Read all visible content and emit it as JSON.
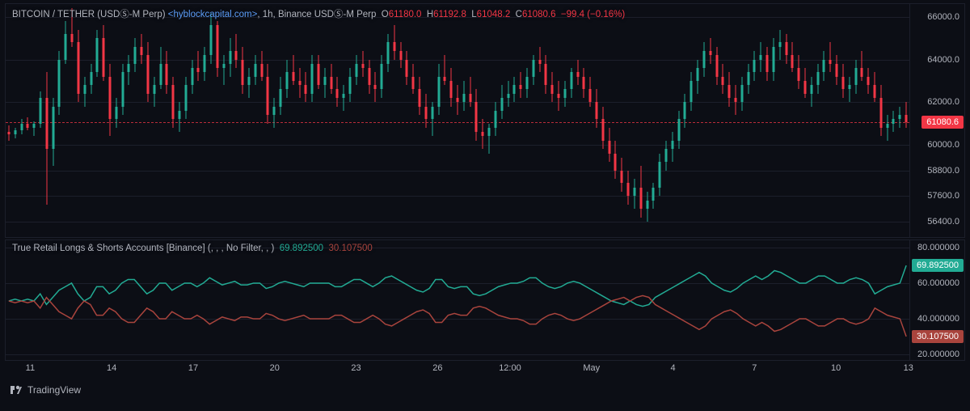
{
  "main": {
    "legend": {
      "pair": "BITCOIN / TETHER (USDⓈ-M Perp)",
      "source": "<hyblockcapital.com>",
      "interval": ", 1h,",
      "exchange": "Binance USDⓈ-M Perp",
      "o_label": "O",
      "o": "61180.0",
      "h_label": "H",
      "h": "61192.8",
      "l_label": "L",
      "l": "61048.2",
      "c_label": "C",
      "c": "61080.6",
      "chg": "−99.4 (−0.16%)"
    },
    "y": {
      "min": 55600,
      "max": 66600,
      "ticks": [
        66000,
        64000,
        62000,
        60000,
        58800,
        57600,
        56400
      ],
      "tick_labels": [
        "66000.0",
        "64000.0",
        "62000.0",
        "60000.0",
        "58800.0",
        "57600.0",
        "56400.0"
      ],
      "price_line": 61080.6,
      "price_label": "61080.6",
      "badge_bg": "#f23645"
    },
    "colors": {
      "up": "#22ab94",
      "down": "#f23645",
      "grid": "#1c1f2b",
      "bg": "#0c0e15"
    },
    "candles_ohlc": [
      [
        60600,
        60900,
        60200,
        60500
      ],
      [
        60500,
        60800,
        60300,
        60700
      ],
      [
        60700,
        61200,
        60500,
        61000
      ],
      [
        61000,
        61300,
        60700,
        60800
      ],
      [
        60800,
        61100,
        60400,
        61000
      ],
      [
        61000,
        62500,
        60800,
        62200
      ],
      [
        62200,
        63400,
        57200,
        59800
      ],
      [
        59800,
        62200,
        59000,
        61800
      ],
      [
        61800,
        64400,
        61400,
        64000
      ],
      [
        64000,
        65800,
        63800,
        65200
      ],
      [
        65200,
        66400,
        64600,
        64800
      ],
      [
        64800,
        65400,
        62000,
        62400
      ],
      [
        62400,
        63200,
        61800,
        62800
      ],
      [
        62800,
        63800,
        62400,
        63400
      ],
      [
        63400,
        65400,
        63200,
        65000
      ],
      [
        65000,
        65600,
        63000,
        63200
      ],
      [
        63200,
        63800,
        60400,
        61200
      ],
      [
        61200,
        62200,
        60800,
        61800
      ],
      [
        61800,
        63800,
        61400,
        63400
      ],
      [
        63400,
        64200,
        62800,
        63800
      ],
      [
        63800,
        65000,
        63400,
        64600
      ],
      [
        64600,
        65200,
        63800,
        64200
      ],
      [
        64200,
        64800,
        62000,
        62400
      ],
      [
        62400,
        63200,
        61800,
        62800
      ],
      [
        62800,
        64600,
        62600,
        63800
      ],
      [
        63800,
        64400,
        62400,
        62800
      ],
      [
        62800,
        63200,
        60800,
        61200
      ],
      [
        61200,
        62000,
        60600,
        61600
      ],
      [
        61600,
        63200,
        61200,
        62800
      ],
      [
        62800,
        64000,
        62400,
        63600
      ],
      [
        63600,
        64400,
        63000,
        63400
      ],
      [
        63400,
        64600,
        63000,
        64200
      ],
      [
        64200,
        66200,
        63800,
        65600
      ],
      [
        65600,
        65800,
        63200,
        63600
      ],
      [
        63600,
        64200,
        62800,
        63800
      ],
      [
        63800,
        65000,
        63200,
        64400
      ],
      [
        64400,
        65200,
        63600,
        64000
      ],
      [
        64000,
        64600,
        62400,
        62800
      ],
      [
        62800,
        63600,
        62200,
        63200
      ],
      [
        63200,
        64200,
        62800,
        63800
      ],
      [
        63800,
        64400,
        63000,
        63200
      ],
      [
        63200,
        63800,
        61000,
        61400
      ],
      [
        61400,
        62200,
        60800,
        61800
      ],
      [
        61800,
        63200,
        61400,
        62600
      ],
      [
        62600,
        64000,
        62200,
        63400
      ],
      [
        63400,
        64200,
        62800,
        63000
      ],
      [
        63000,
        63600,
        62200,
        62800
      ],
      [
        62800,
        63400,
        62000,
        62400
      ],
      [
        62400,
        64200,
        62000,
        63800
      ],
      [
        63800,
        64200,
        62600,
        62800
      ],
      [
        62800,
        63600,
        62200,
        63200
      ],
      [
        63200,
        63800,
        62400,
        62600
      ],
      [
        62600,
        63200,
        61800,
        62200
      ],
      [
        62200,
        62800,
        61600,
        62400
      ],
      [
        62400,
        63600,
        62000,
        63200
      ],
      [
        63200,
        64200,
        62800,
        63800
      ],
      [
        63800,
        64400,
        63200,
        63600
      ],
      [
        63600,
        64000,
        62400,
        62800
      ],
      [
        62800,
        63400,
        62000,
        62600
      ],
      [
        62600,
        64200,
        62200,
        63800
      ],
      [
        63800,
        65200,
        63400,
        64800
      ],
      [
        64800,
        65600,
        64000,
        64400
      ],
      [
        64400,
        64800,
        63600,
        64000
      ],
      [
        64000,
        64400,
        62800,
        63200
      ],
      [
        63200,
        63800,
        62400,
        62600
      ],
      [
        62600,
        63200,
        61400,
        61800
      ],
      [
        61800,
        62400,
        60800,
        61200
      ],
      [
        61200,
        62000,
        60400,
        61800
      ],
      [
        61800,
        63800,
        61400,
        63200
      ],
      [
        63200,
        64200,
        62800,
        63000
      ],
      [
        63000,
        63600,
        61800,
        62200
      ],
      [
        62200,
        62800,
        61400,
        62000
      ],
      [
        62000,
        63000,
        61600,
        62400
      ],
      [
        62400,
        63200,
        61800,
        62000
      ],
      [
        62000,
        62600,
        60200,
        60600
      ],
      [
        60600,
        61200,
        59800,
        60400
      ],
      [
        60400,
        61000,
        59600,
        60800
      ],
      [
        60800,
        62000,
        60400,
        61600
      ],
      [
        61600,
        62800,
        61200,
        62200
      ],
      [
        62200,
        63000,
        61800,
        62400
      ],
      [
        62400,
        63200,
        62000,
        62800
      ],
      [
        62800,
        63400,
        62200,
        62600
      ],
      [
        62600,
        63600,
        62200,
        63200
      ],
      [
        63200,
        64200,
        62800,
        64000
      ],
      [
        64000,
        64600,
        63400,
        63800
      ],
      [
        63800,
        64200,
        62400,
        62800
      ],
      [
        62800,
        63400,
        62000,
        62400
      ],
      [
        62400,
        63000,
        61600,
        62200
      ],
      [
        62200,
        63000,
        61800,
        62600
      ],
      [
        62600,
        63600,
        62200,
        63400
      ],
      [
        63400,
        64000,
        62800,
        63200
      ],
      [
        63200,
        63600,
        62200,
        62600
      ],
      [
        62600,
        63200,
        61800,
        62000
      ],
      [
        62000,
        62600,
        60800,
        61200
      ],
      [
        61200,
        61800,
        59800,
        60200
      ],
      [
        60200,
        60800,
        59200,
        59600
      ],
      [
        59600,
        60200,
        58400,
        58800
      ],
      [
        58800,
        59400,
        57800,
        58200
      ],
      [
        58200,
        58800,
        57200,
        57600
      ],
      [
        57600,
        58400,
        57000,
        58000
      ],
      [
        58000,
        59000,
        56600,
        57000
      ],
      [
        57000,
        57800,
        56400,
        57400
      ],
      [
        57400,
        58200,
        57000,
        58000
      ],
      [
        58000,
        59600,
        57600,
        59200
      ],
      [
        59200,
        60200,
        58800,
        59800
      ],
      [
        59800,
        60600,
        59200,
        60200
      ],
      [
        60200,
        61600,
        59800,
        61200
      ],
      [
        61200,
        62400,
        60800,
        62000
      ],
      [
        62000,
        63400,
        61600,
        63000
      ],
      [
        63000,
        64000,
        62400,
        63600
      ],
      [
        63600,
        64800,
        63200,
        64400
      ],
      [
        64400,
        65000,
        63800,
        64200
      ],
      [
        64200,
        64600,
        62800,
        63200
      ],
      [
        63200,
        63800,
        62400,
        62800
      ],
      [
        62800,
        63400,
        61800,
        62200
      ],
      [
        62200,
        62800,
        61400,
        62000
      ],
      [
        62000,
        63200,
        61600,
        62800
      ],
      [
        62800,
        63800,
        62400,
        63400
      ],
      [
        63400,
        64400,
        63000,
        64000
      ],
      [
        64000,
        64800,
        63400,
        64200
      ],
      [
        64200,
        64600,
        63000,
        63400
      ],
      [
        63400,
        65000,
        63000,
        64600
      ],
      [
        64600,
        65400,
        64000,
        64800
      ],
      [
        64800,
        65200,
        63800,
        64200
      ],
      [
        64200,
        64800,
        63400,
        63600
      ],
      [
        63600,
        64200,
        62600,
        63000
      ],
      [
        63000,
        63600,
        62200,
        62400
      ],
      [
        62400,
        63200,
        61800,
        62800
      ],
      [
        62800,
        63800,
        62400,
        63400
      ],
      [
        63400,
        64400,
        63000,
        64000
      ],
      [
        64000,
        64800,
        63400,
        63800
      ],
      [
        63800,
        64200,
        62800,
        63200
      ],
      [
        63200,
        63800,
        62200,
        62600
      ],
      [
        62600,
        63200,
        62000,
        62800
      ],
      [
        62800,
        64000,
        62400,
        63600
      ],
      [
        63600,
        64400,
        63000,
        63200
      ],
      [
        63200,
        63600,
        62400,
        62800
      ],
      [
        62800,
        63400,
        62000,
        62200
      ],
      [
        62200,
        62800,
        60400,
        60800
      ],
      [
        60800,
        61400,
        60200,
        61000
      ],
      [
        61000,
        61600,
        60600,
        61200
      ],
      [
        61200,
        61800,
        60800,
        61400
      ],
      [
        61400,
        62000,
        60800,
        61080
      ]
    ]
  },
  "indicator": {
    "legend": {
      "name": "True Retail Longs & Shorts Accounts [Binance]",
      "params": "(, , , No Filter, , )",
      "val_long": "69.892500",
      "val_short": "30.107500"
    },
    "y": {
      "min": 16,
      "max": 84,
      "ticks": [
        80,
        60,
        40,
        20
      ],
      "tick_labels": [
        "80.000000",
        "60.000000",
        "40.000000",
        "20.000000"
      ],
      "long_badge": "69.892500",
      "short_badge": "30.107500",
      "long_badge_bg": "#22ab94",
      "short_badge_bg": "#a9443d"
    },
    "colors": {
      "long": "#22ab94",
      "short": "#a9443d"
    },
    "long_series": [
      50,
      51,
      50,
      51,
      50,
      54,
      48,
      52,
      56,
      58,
      60,
      54,
      50,
      52,
      58,
      58,
      54,
      56,
      60,
      62,
      62,
      58,
      54,
      56,
      60,
      60,
      56,
      58,
      60,
      60,
      58,
      60,
      63,
      61,
      59,
      60,
      61,
      59,
      59,
      60,
      60,
      57,
      58,
      60,
      61,
      60,
      59,
      58,
      60,
      60,
      60,
      60,
      58,
      58,
      60,
      62,
      62,
      60,
      58,
      60,
      63,
      64,
      62,
      60,
      58,
      56,
      55,
      57,
      62,
      62,
      58,
      57,
      58,
      58,
      54,
      53,
      54,
      56,
      58,
      59,
      60,
      60,
      61,
      63,
      63,
      60,
      58,
      57,
      58,
      60,
      61,
      60,
      58,
      56,
      54,
      52,
      50,
      49,
      48,
      50,
      48,
      47,
      48,
      52,
      54,
      56,
      58,
      60,
      62,
      64,
      66,
      64,
      60,
      58,
      56,
      55,
      57,
      60,
      62,
      64,
      62,
      64,
      67,
      66,
      64,
      62,
      60,
      60,
      62,
      64,
      64,
      62,
      60,
      60,
      62,
      63,
      62,
      60,
      54,
      56,
      58,
      59,
      60,
      69.8925
    ],
    "short_series": [
      50,
      49,
      50,
      49,
      50,
      46,
      52,
      48,
      44,
      42,
      40,
      46,
      50,
      48,
      42,
      42,
      46,
      44,
      40,
      38,
      38,
      42,
      46,
      44,
      40,
      40,
      44,
      42,
      40,
      40,
      42,
      40,
      37,
      39,
      41,
      40,
      39,
      41,
      41,
      40,
      40,
      43,
      42,
      40,
      39,
      40,
      41,
      42,
      40,
      40,
      40,
      40,
      42,
      42,
      40,
      38,
      38,
      40,
      42,
      40,
      37,
      36,
      38,
      40,
      42,
      44,
      45,
      43,
      38,
      38,
      42,
      43,
      42,
      42,
      46,
      47,
      46,
      44,
      42,
      41,
      40,
      40,
      39,
      37,
      37,
      40,
      42,
      43,
      42,
      40,
      39,
      40,
      42,
      44,
      46,
      48,
      50,
      51,
      52,
      50,
      52,
      53,
      52,
      48,
      46,
      44,
      42,
      40,
      38,
      36,
      34,
      36,
      40,
      42,
      44,
      45,
      43,
      40,
      38,
      36,
      38,
      36,
      33,
      34,
      36,
      38,
      40,
      40,
      38,
      36,
      36,
      38,
      40,
      40,
      38,
      37,
      38,
      40,
      46,
      44,
      42,
      41,
      40,
      30.1075
    ]
  },
  "time_axis": {
    "ticks": [
      {
        "pos": 0.028,
        "label": "11"
      },
      {
        "pos": 0.118,
        "label": "14"
      },
      {
        "pos": 0.208,
        "label": "17"
      },
      {
        "pos": 0.298,
        "label": "20"
      },
      {
        "pos": 0.388,
        "label": "23"
      },
      {
        "pos": 0.478,
        "label": "26"
      },
      {
        "pos": 0.558,
        "label": "12:00"
      },
      {
        "pos": 0.648,
        "label": "May"
      },
      {
        "pos": 0.738,
        "label": "4"
      },
      {
        "pos": 0.828,
        "label": "7"
      },
      {
        "pos": 0.918,
        "label": "10"
      },
      {
        "pos": 0.998,
        "label": "13"
      }
    ]
  },
  "footer": {
    "brand": "TradingView"
  }
}
